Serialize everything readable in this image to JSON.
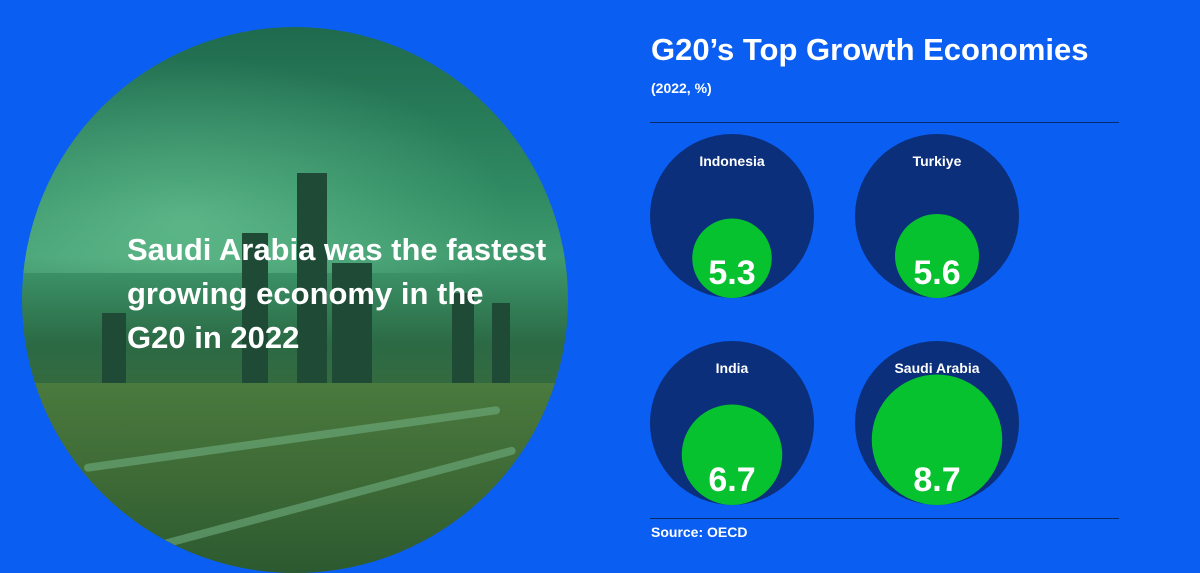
{
  "headline": "Saudi Arabia was the fastest growing economy in the G20 in 2022",
  "chart_data": {
    "type": "bubble",
    "title": "G20’s Top Growth Economies",
    "subtitle": "(2022, %)",
    "categories": [
      "Indonesia",
      "Turkiye",
      "India",
      "Saudi Arabia"
    ],
    "values": [
      5.3,
      5.6,
      6.7,
      8.7
    ],
    "value_labels": [
      "5.3",
      "5.6",
      "6.7",
      "8.7"
    ],
    "source": "Source: OECD",
    "colors": {
      "outer": "#0b2f7a",
      "inner": "#06c22f",
      "background": "#0a5ef2"
    }
  }
}
